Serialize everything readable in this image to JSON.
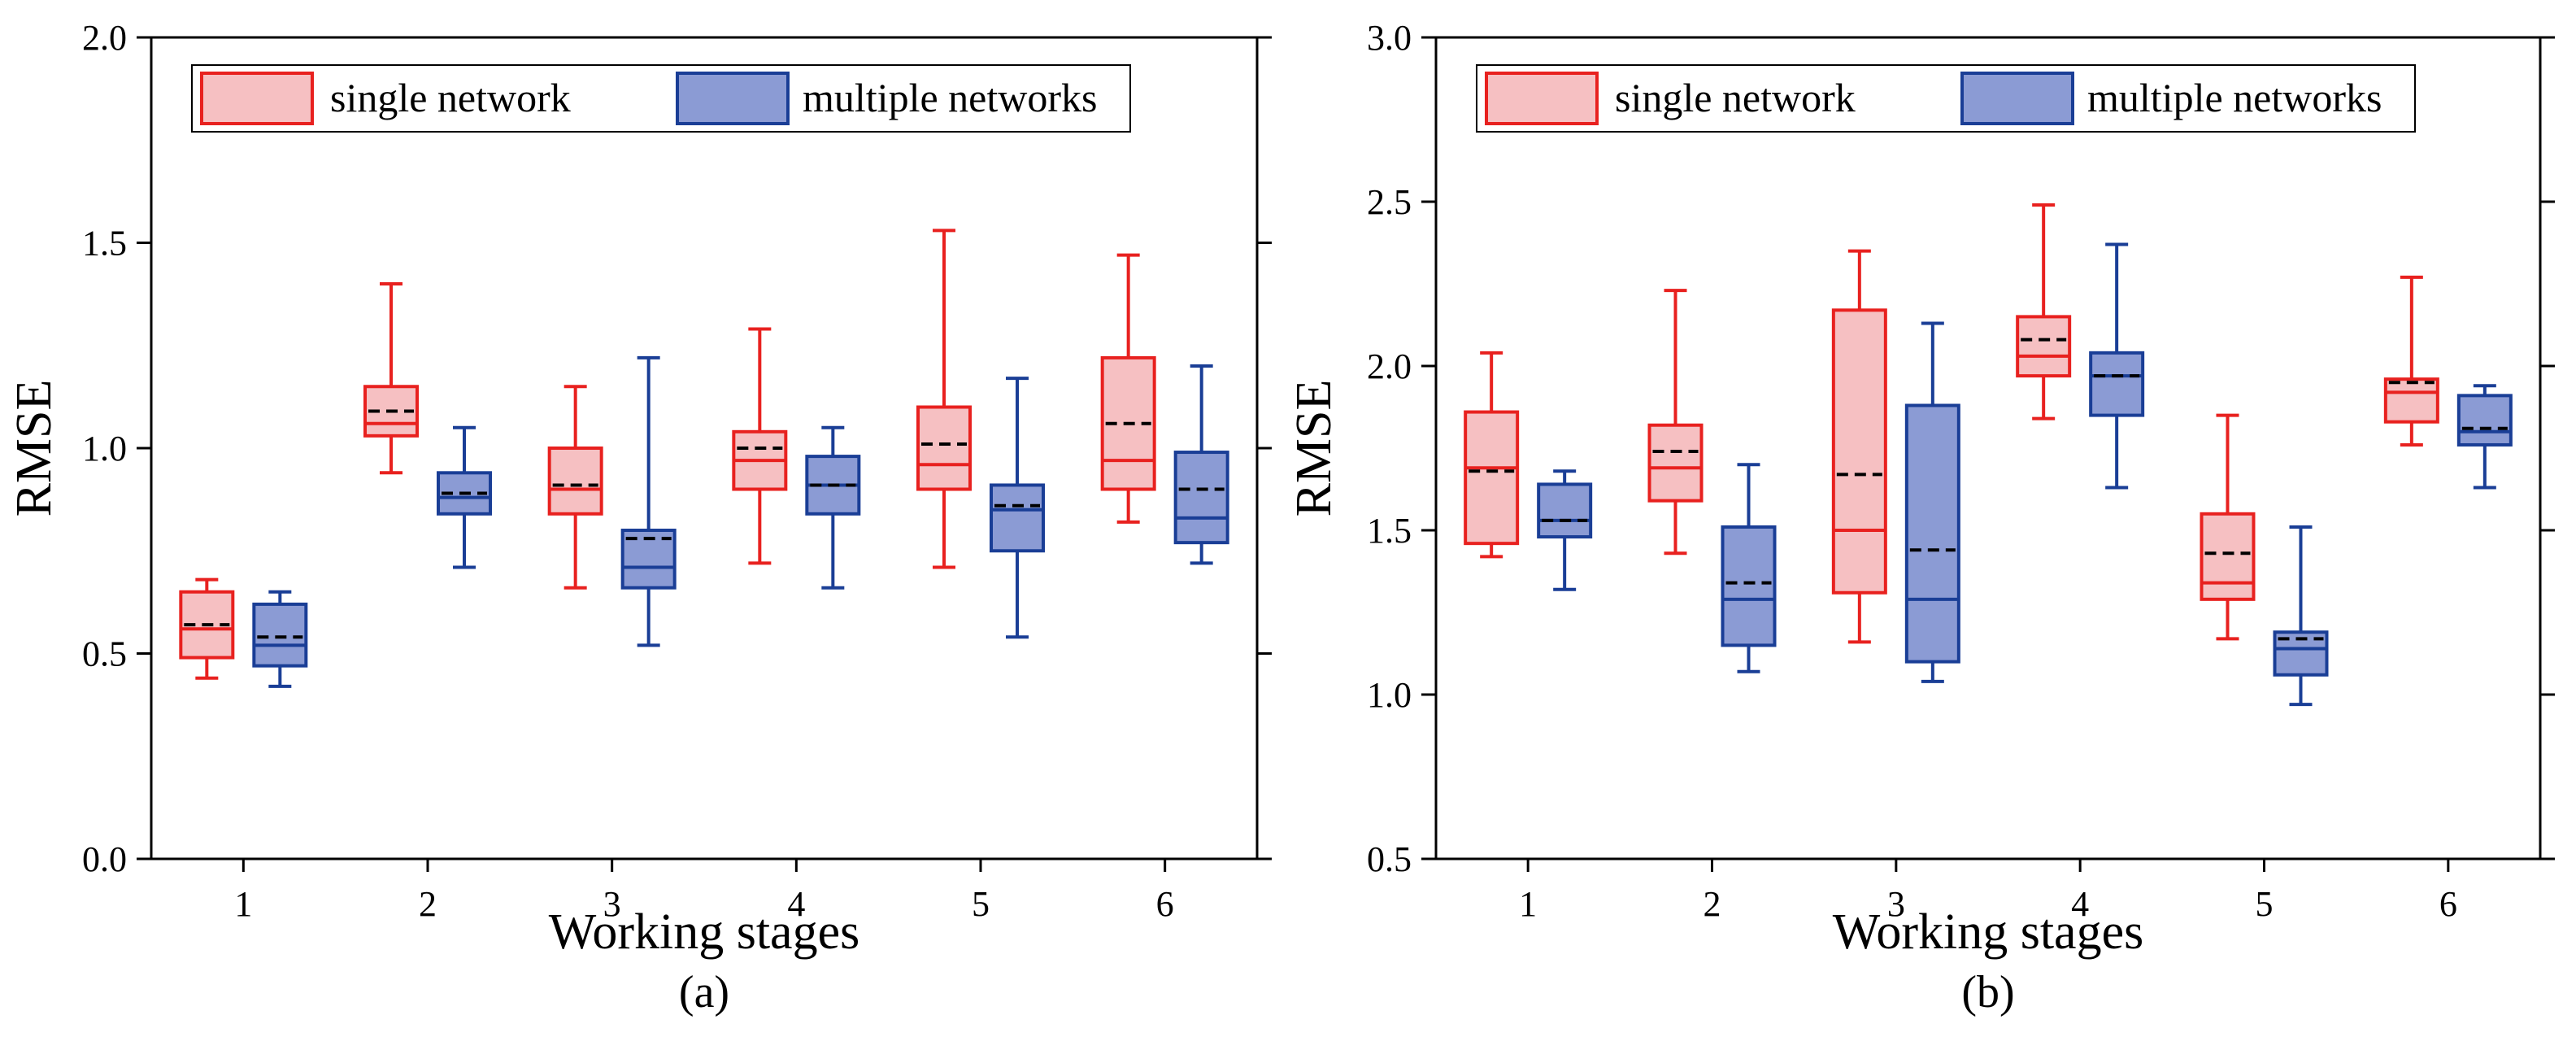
{
  "chart_data": [
    {
      "type": "box",
      "panel_label": "(a)",
      "xlabel": "Working stages",
      "ylabel": "RMSE",
      "ylim": [
        0.0,
        2.0
      ],
      "yticks": [
        0.0,
        0.5,
        1.0,
        1.5,
        2.0
      ],
      "ytick_labels": [
        "0.0",
        "0.5",
        "1.0",
        "1.5",
        "2.0"
      ],
      "categories": [
        "1",
        "2",
        "3",
        "4",
        "5",
        "6"
      ],
      "legend": {
        "position": "top-left",
        "entries": [
          "single network",
          "multiple networks"
        ]
      },
      "series": [
        {
          "name": "single network",
          "edge_color": "#e8211f",
          "fill_color": "#f6c0c2",
          "boxes": [
            {
              "whisker_low": 0.44,
              "q1": 0.49,
              "median": 0.56,
              "mean": 0.57,
              "q3": 0.65,
              "whisker_high": 0.68
            },
            {
              "whisker_low": 0.94,
              "q1": 1.03,
              "median": 1.06,
              "mean": 1.09,
              "q3": 1.15,
              "whisker_high": 1.4
            },
            {
              "whisker_low": 0.66,
              "q1": 0.84,
              "median": 0.9,
              "mean": 0.91,
              "q3": 1.0,
              "whisker_high": 1.15
            },
            {
              "whisker_low": 0.72,
              "q1": 0.9,
              "median": 0.97,
              "mean": 1.0,
              "q3": 1.04,
              "whisker_high": 1.29
            },
            {
              "whisker_low": 0.71,
              "q1": 0.9,
              "median": 0.96,
              "mean": 1.01,
              "q3": 1.1,
              "whisker_high": 1.53
            },
            {
              "whisker_low": 0.82,
              "q1": 0.9,
              "median": 0.97,
              "mean": 1.06,
              "q3": 1.22,
              "whisker_high": 1.47
            }
          ]
        },
        {
          "name": "multiple networks",
          "edge_color": "#1a3e96",
          "fill_color": "#8b9bd4",
          "boxes": [
            {
              "whisker_low": 0.42,
              "q1": 0.47,
              "median": 0.52,
              "mean": 0.54,
              "q3": 0.62,
              "whisker_high": 0.65
            },
            {
              "whisker_low": 0.71,
              "q1": 0.84,
              "median": 0.88,
              "mean": 0.89,
              "q3": 0.94,
              "whisker_high": 1.05
            },
            {
              "whisker_low": 0.52,
              "q1": 0.66,
              "median": 0.71,
              "mean": 0.78,
              "q3": 0.8,
              "whisker_high": 1.22
            },
            {
              "whisker_low": 0.66,
              "q1": 0.84,
              "median": 0.91,
              "mean": 0.91,
              "q3": 0.98,
              "whisker_high": 1.05
            },
            {
              "whisker_low": 0.54,
              "q1": 0.75,
              "median": 0.85,
              "mean": 0.86,
              "q3": 0.91,
              "whisker_high": 1.17
            },
            {
              "whisker_low": 0.72,
              "q1": 0.77,
              "median": 0.83,
              "mean": 0.9,
              "q3": 0.99,
              "whisker_high": 1.2
            }
          ]
        }
      ]
    },
    {
      "type": "box",
      "panel_label": "(b)",
      "xlabel": "Working stages",
      "ylabel": "RMSE",
      "ylim": [
        0.5,
        3.0
      ],
      "yticks": [
        0.5,
        1.0,
        1.5,
        2.0,
        2.5,
        3.0
      ],
      "ytick_labels": [
        "0.5",
        "1.0",
        "1.5",
        "2.0",
        "2.5",
        "3.0"
      ],
      "categories": [
        "1",
        "2",
        "3",
        "4",
        "5",
        "6"
      ],
      "legend": {
        "position": "top-left",
        "entries": [
          "single network",
          "multiple networks"
        ]
      },
      "series": [
        {
          "name": "single network",
          "edge_color": "#e8211f",
          "fill_color": "#f6c0c2",
          "boxes": [
            {
              "whisker_low": 1.42,
              "q1": 1.46,
              "median": 1.69,
              "mean": 1.68,
              "q3": 1.86,
              "whisker_high": 2.04
            },
            {
              "whisker_low": 1.43,
              "q1": 1.59,
              "median": 1.69,
              "mean": 1.74,
              "q3": 1.82,
              "whisker_high": 2.23
            },
            {
              "whisker_low": 1.16,
              "q1": 1.31,
              "median": 1.5,
              "mean": 1.67,
              "q3": 2.17,
              "whisker_high": 2.35
            },
            {
              "whisker_low": 1.84,
              "q1": 1.97,
              "median": 2.03,
              "mean": 2.08,
              "q3": 2.15,
              "whisker_high": 2.49
            },
            {
              "whisker_low": 1.17,
              "q1": 1.29,
              "median": 1.34,
              "mean": 1.43,
              "q3": 1.55,
              "whisker_high": 1.85
            },
            {
              "whisker_low": 1.76,
              "q1": 1.83,
              "median": 1.92,
              "mean": 1.95,
              "q3": 1.96,
              "whisker_high": 2.27
            }
          ]
        },
        {
          "name": "multiple networks",
          "edge_color": "#1a3e96",
          "fill_color": "#8b9bd4",
          "boxes": [
            {
              "whisker_low": 1.32,
              "q1": 1.48,
              "median": 1.53,
              "mean": 1.53,
              "q3": 1.64,
              "whisker_high": 1.68
            },
            {
              "whisker_low": 1.07,
              "q1": 1.15,
              "median": 1.29,
              "mean": 1.34,
              "q3": 1.51,
              "whisker_high": 1.7
            },
            {
              "whisker_low": 1.04,
              "q1": 1.1,
              "median": 1.29,
              "mean": 1.44,
              "q3": 1.88,
              "whisker_high": 2.13
            },
            {
              "whisker_low": 1.63,
              "q1": 1.85,
              "median": 1.97,
              "mean": 1.97,
              "q3": 2.04,
              "whisker_high": 2.37
            },
            {
              "whisker_low": 0.97,
              "q1": 1.06,
              "median": 1.14,
              "mean": 1.17,
              "q3": 1.19,
              "whisker_high": 1.51
            },
            {
              "whisker_low": 1.63,
              "q1": 1.76,
              "median": 1.8,
              "mean": 1.81,
              "q3": 1.91,
              "whisker_high": 1.94
            }
          ]
        }
      ]
    }
  ]
}
